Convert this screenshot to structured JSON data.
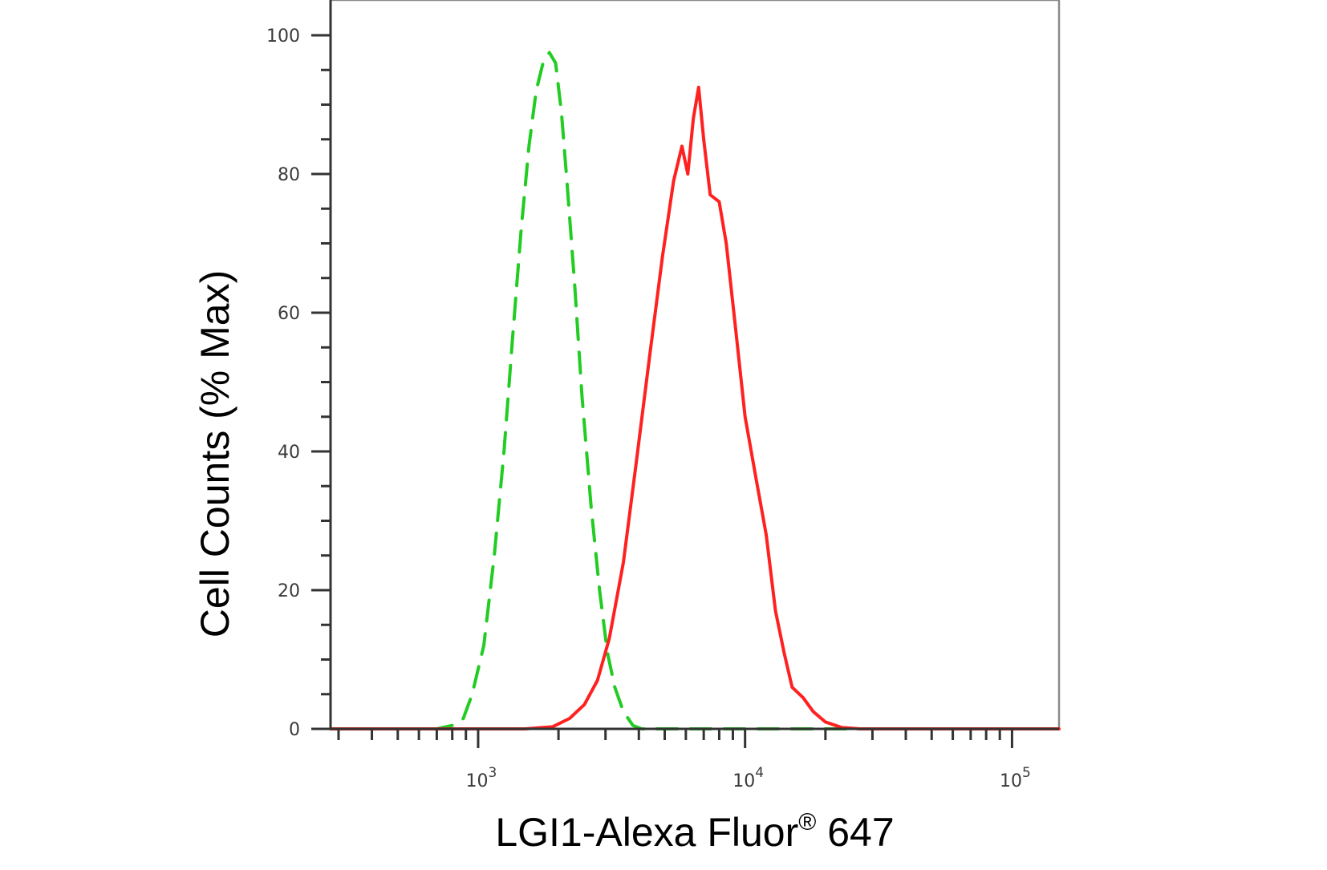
{
  "chart_data": {
    "type": "line",
    "title": "",
    "xlabel": "LGI1-Alexa Fluor",
    "xlabel_superscript": "®",
    "xlabel_suffix": " 647",
    "ylabel": "Cell Counts (% Max)",
    "x_scale": "log",
    "xlim": [
      280,
      150000
    ],
    "ylim": [
      0,
      105
    ],
    "grid": false,
    "legend": "none",
    "y_ticks": [
      0,
      20,
      40,
      60,
      80,
      100
    ],
    "x_ticks": [
      {
        "value": 1000,
        "base": "10",
        "exp": "3"
      },
      {
        "value": 10000,
        "base": "10",
        "exp": "4"
      },
      {
        "value": 100000,
        "base": "10",
        "exp": "5"
      }
    ],
    "series": [
      {
        "color": "#22cc22",
        "dash": true,
        "points": [
          [
            280,
            0
          ],
          [
            700,
            0
          ],
          [
            800,
            0.5
          ],
          [
            880,
            1.5
          ],
          [
            950,
            5
          ],
          [
            1050,
            12
          ],
          [
            1150,
            25
          ],
          [
            1250,
            40
          ],
          [
            1350,
            57
          ],
          [
            1450,
            72
          ],
          [
            1550,
            84
          ],
          [
            1650,
            92
          ],
          [
            1750,
            96
          ],
          [
            1850,
            97.5
          ],
          [
            1950,
            96
          ],
          [
            2050,
            89
          ],
          [
            2150,
            79
          ],
          [
            2300,
            64
          ],
          [
            2450,
            48
          ],
          [
            2650,
            32
          ],
          [
            2850,
            20
          ],
          [
            3050,
            11
          ],
          [
            3250,
            6
          ],
          [
            3500,
            2.5
          ],
          [
            3800,
            0.5
          ],
          [
            4100,
            0
          ],
          [
            150000,
            0
          ]
        ]
      },
      {
        "color": "#ff2020",
        "dash": false,
        "points": [
          [
            280,
            0
          ],
          [
            1500,
            0
          ],
          [
            1900,
            0.3
          ],
          [
            2200,
            1.5
          ],
          [
            2500,
            3.5
          ],
          [
            2800,
            7
          ],
          [
            3100,
            13
          ],
          [
            3500,
            24
          ],
          [
            3900,
            38
          ],
          [
            4400,
            54
          ],
          [
            4900,
            68
          ],
          [
            5400,
            79
          ],
          [
            5800,
            84
          ],
          [
            6100,
            80
          ],
          [
            6400,
            88
          ],
          [
            6700,
            92.5
          ],
          [
            7000,
            85
          ],
          [
            7400,
            77
          ],
          [
            8000,
            76
          ],
          [
            8500,
            70
          ],
          [
            9200,
            58
          ],
          [
            10000,
            45
          ],
          [
            11000,
            36
          ],
          [
            12000,
            28
          ],
          [
            13000,
            17
          ],
          [
            14000,
            11
          ],
          [
            15000,
            6
          ],
          [
            16500,
            4.5
          ],
          [
            18000,
            2.5
          ],
          [
            20000,
            1
          ],
          [
            23000,
            0.2
          ],
          [
            27000,
            0
          ],
          [
            150000,
            0
          ]
        ]
      }
    ]
  }
}
